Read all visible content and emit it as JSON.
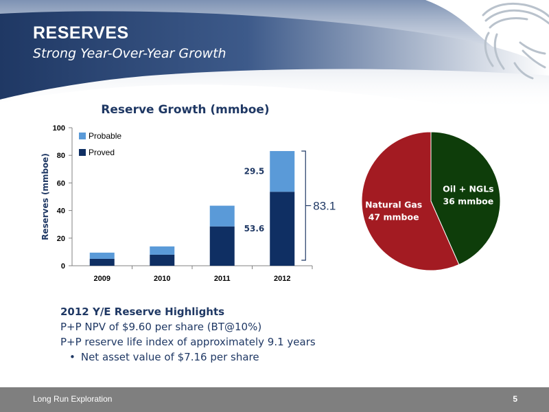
{
  "slide": {
    "title": "RESERVES",
    "subtitle": "Strong Year-Over-Year Growth",
    "page_number": "5",
    "company": "Long Run Exploration"
  },
  "colors": {
    "header_dark": "#1f3864",
    "header_light": "#8fa5c7",
    "proved": "#0f2f63",
    "probable": "#5a9ad8",
    "natural_gas": "#a31b22",
    "oil_ngls": "#0e3d0a",
    "text_navy": "#1f3864",
    "footer": "#7f7f7f"
  },
  "highlights": {
    "title": "2012 Y/E Reserve Highlights",
    "lines": [
      "P+P NPV of $9.60 per share (BT@10%)",
      "P+P reserve life index of approximately 9.1 years"
    ],
    "bullet": "Net asset value of $7.16 per share",
    "bullet_symbol": "•"
  },
  "chart_data": [
    {
      "type": "bar",
      "stacked": true,
      "title": "Reserve Growth (mmboe)",
      "xlabel": "",
      "ylabel": "Reserves (mmboe)",
      "categories": [
        "2009",
        "2010",
        "2011",
        "2012"
      ],
      "ylim": [
        0,
        100
      ],
      "yticks": [
        0,
        20,
        40,
        60,
        80,
        100
      ],
      "series": [
        {
          "name": "Proved",
          "color": "#0f2f63",
          "values": [
            5,
            8,
            28.5,
            53.6
          ]
        },
        {
          "name": "Probable",
          "color": "#5a9ad8",
          "values": [
            4.5,
            6,
            15,
            29.5
          ]
        }
      ],
      "legend": {
        "placement": "top-left",
        "order": [
          "Probable",
          "Proved"
        ]
      },
      "data_labels": [
        {
          "text": "29.5",
          "category": "2012",
          "series": "Probable"
        },
        {
          "text": "53.6",
          "category": "2012",
          "series": "Proved"
        }
      ],
      "total_annotation": {
        "text": "83.1",
        "category": "2012"
      },
      "grid": false
    },
    {
      "type": "pie",
      "slices": [
        {
          "name": "Natural Gas",
          "label": "47 mmboe",
          "value": 47,
          "color": "#a31b22"
        },
        {
          "name": "Oil + NGLs",
          "label": "36 mmboe",
          "value": 36,
          "color": "#0e3d0a"
        }
      ]
    }
  ]
}
